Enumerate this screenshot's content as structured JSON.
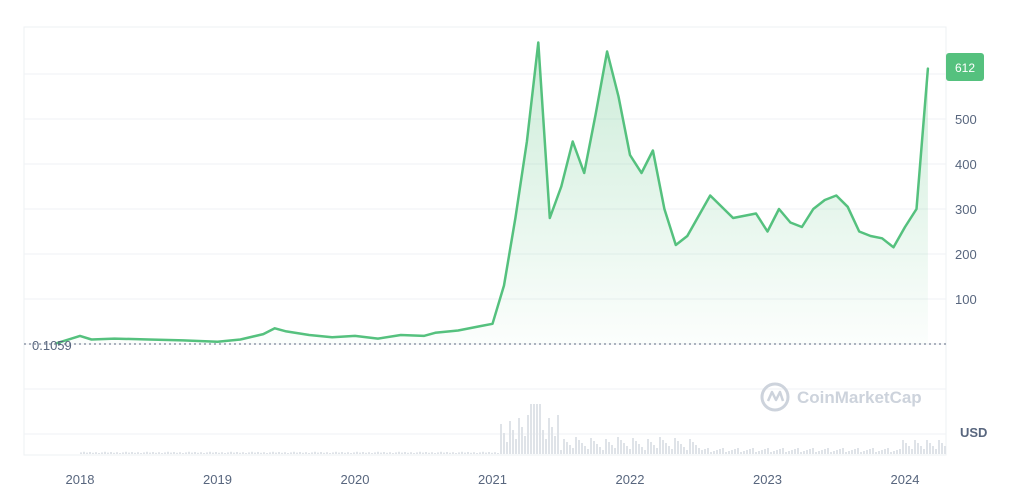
{
  "chart_data": {
    "type": "area",
    "x": [
      "2017-11",
      "2018-01",
      "2018-02",
      "2018-04",
      "2018-07",
      "2018-10",
      "2019-01",
      "2019-03",
      "2019-05",
      "2019-06",
      "2019-07",
      "2019-09",
      "2019-11",
      "2020-01",
      "2020-03",
      "2020-05",
      "2020-07",
      "2020-08",
      "2020-10",
      "2020-12",
      "2021-01",
      "2021-02",
      "2021-03",
      "2021-04",
      "2021-05",
      "2021-06",
      "2021-07",
      "2021-08",
      "2021-09",
      "2021-10",
      "2021-11",
      "2021-12",
      "2022-01",
      "2022-02",
      "2022-03",
      "2022-04",
      "2022-05",
      "2022-06",
      "2022-08",
      "2022-10",
      "2022-12",
      "2023-01",
      "2023-02",
      "2023-03",
      "2023-04",
      "2023-05",
      "2023-06",
      "2023-07",
      "2023-08",
      "2023-09",
      "2023-10",
      "2023-11",
      "2023-12",
      "2024-01",
      "2024-02",
      "2024-03"
    ],
    "values": [
      2,
      18,
      10,
      12,
      10,
      8,
      5,
      10,
      22,
      35,
      28,
      20,
      15,
      18,
      12,
      20,
      18,
      25,
      30,
      40,
      45,
      130,
      280,
      450,
      670,
      280,
      350,
      450,
      380,
      510,
      650,
      550,
      420,
      380,
      430,
      300,
      220,
      240,
      330,
      280,
      290,
      250,
      300,
      270,
      260,
      300,
      320,
      330,
      305,
      250,
      240,
      235,
      215,
      260,
      300,
      612
    ],
    "yticks": [
      100,
      200,
      300,
      400,
      500
    ],
    "xticks": [
      "2018",
      "2019",
      "2020",
      "2021",
      "2022",
      "2023",
      "2024"
    ],
    "ylim": [
      0,
      680
    ],
    "current_price": "612",
    "start_price": "0.1059",
    "currency": "USD",
    "line_color": "#55c17e",
    "grid": true
  },
  "watermark": "CoinMarketCap"
}
